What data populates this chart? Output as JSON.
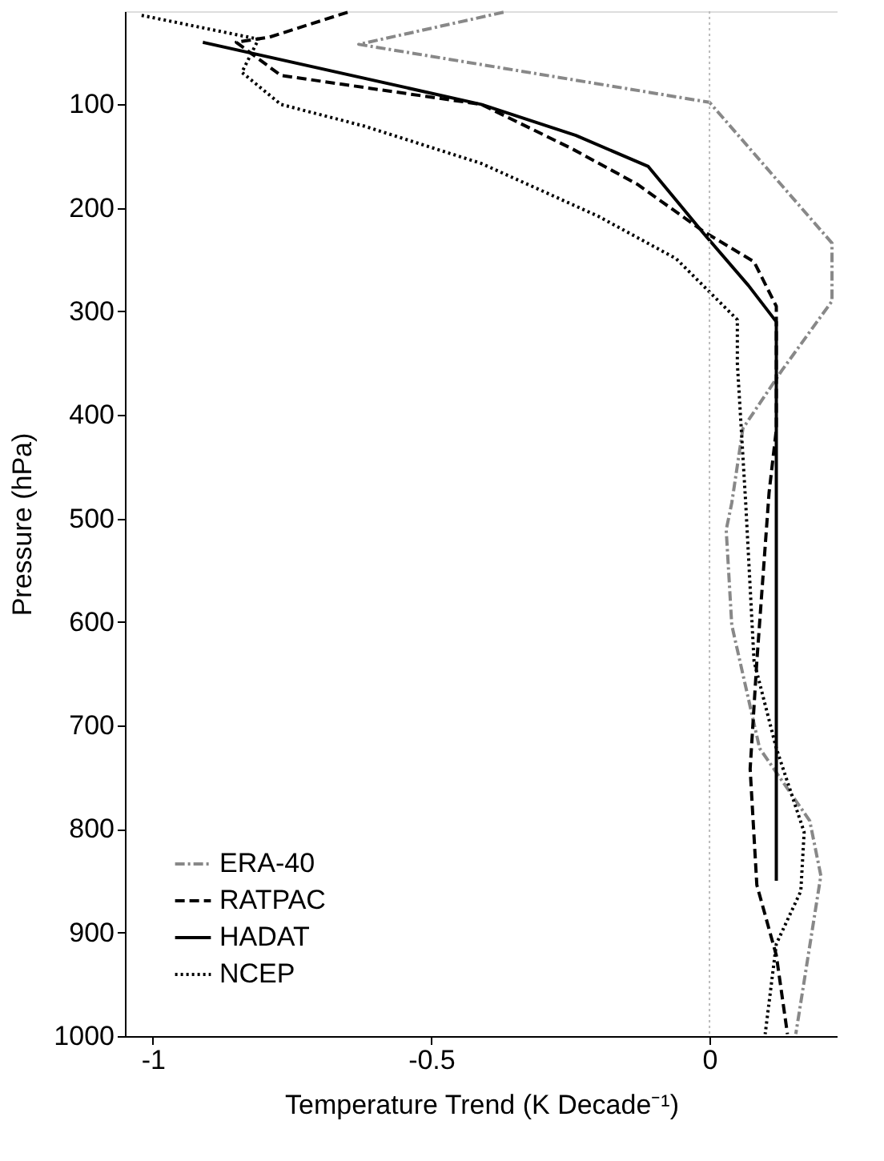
{
  "chart_data": {
    "type": "line",
    "xlabel": "Temperature Trend (K Decade⁻¹)",
    "ylabel": "Pressure (hPa)",
    "xlim": [
      -1.05,
      0.23
    ],
    "ylim": [
      1000,
      10
    ],
    "xticks": [
      -1,
      -0.5,
      0
    ],
    "yticks": [
      100,
      200,
      300,
      400,
      500,
      600,
      700,
      800,
      900,
      1000
    ],
    "grid": false,
    "legend": "bottom left",
    "ref_lines": [
      {
        "axis": "x",
        "value": 0,
        "color": "#bbbbbb",
        "line_style": "dotted"
      }
    ],
    "series": [
      {
        "name": "ERA-40",
        "color": "#888888",
        "line_style": "dashdot",
        "x": [
          -0.37,
          -0.63,
          0.0,
          0.22,
          0.22,
          0.13,
          0.06,
          0.04,
          0.03,
          0.04,
          0.09,
          0.18,
          0.2,
          0.155
        ],
        "values": [
          11,
          42,
          98,
          234,
          290,
          357,
          413,
          485,
          511,
          603,
          722,
          792,
          845,
          998
        ]
      },
      {
        "name": "RATPAC",
        "color": "#000000",
        "line_style": "dashed",
        "x": [
          -0.65,
          -0.79,
          -0.85,
          -0.77,
          -0.41,
          -0.25,
          -0.13,
          -0.01,
          0.08,
          0.12,
          0.12,
          0.12,
          0.107,
          0.085,
          0.073,
          0.085,
          0.12,
          0.14
        ],
        "values": [
          11,
          35,
          40,
          72,
          100,
          142,
          177,
          223,
          252,
          295,
          320,
          414,
          475,
          638,
          742,
          854,
          922,
          998
        ]
      },
      {
        "name": "HADAT",
        "color": "#000000",
        "line_style": "solid",
        "x": [
          -0.91,
          -0.41,
          -0.24,
          -0.11,
          -0.01,
          0.07,
          0.12,
          0.12
        ],
        "values": [
          40,
          100,
          130,
          160,
          225,
          275,
          310,
          850
        ]
      },
      {
        "name": "NCEP",
        "color": "#000000",
        "line_style": "dotted",
        "x": [
          -1.02,
          -0.81,
          -0.84,
          -0.77,
          -0.62,
          -0.41,
          -0.2,
          -0.06,
          0.05,
          0.05,
          0.065,
          0.08,
          0.12,
          0.17,
          0.164,
          0.12,
          0.1
        ],
        "values": [
          14,
          37,
          69,
          100,
          121,
          157,
          208,
          249,
          308,
          350,
          485,
          638,
          722,
          803,
          860,
          911,
          998
        ]
      }
    ]
  }
}
